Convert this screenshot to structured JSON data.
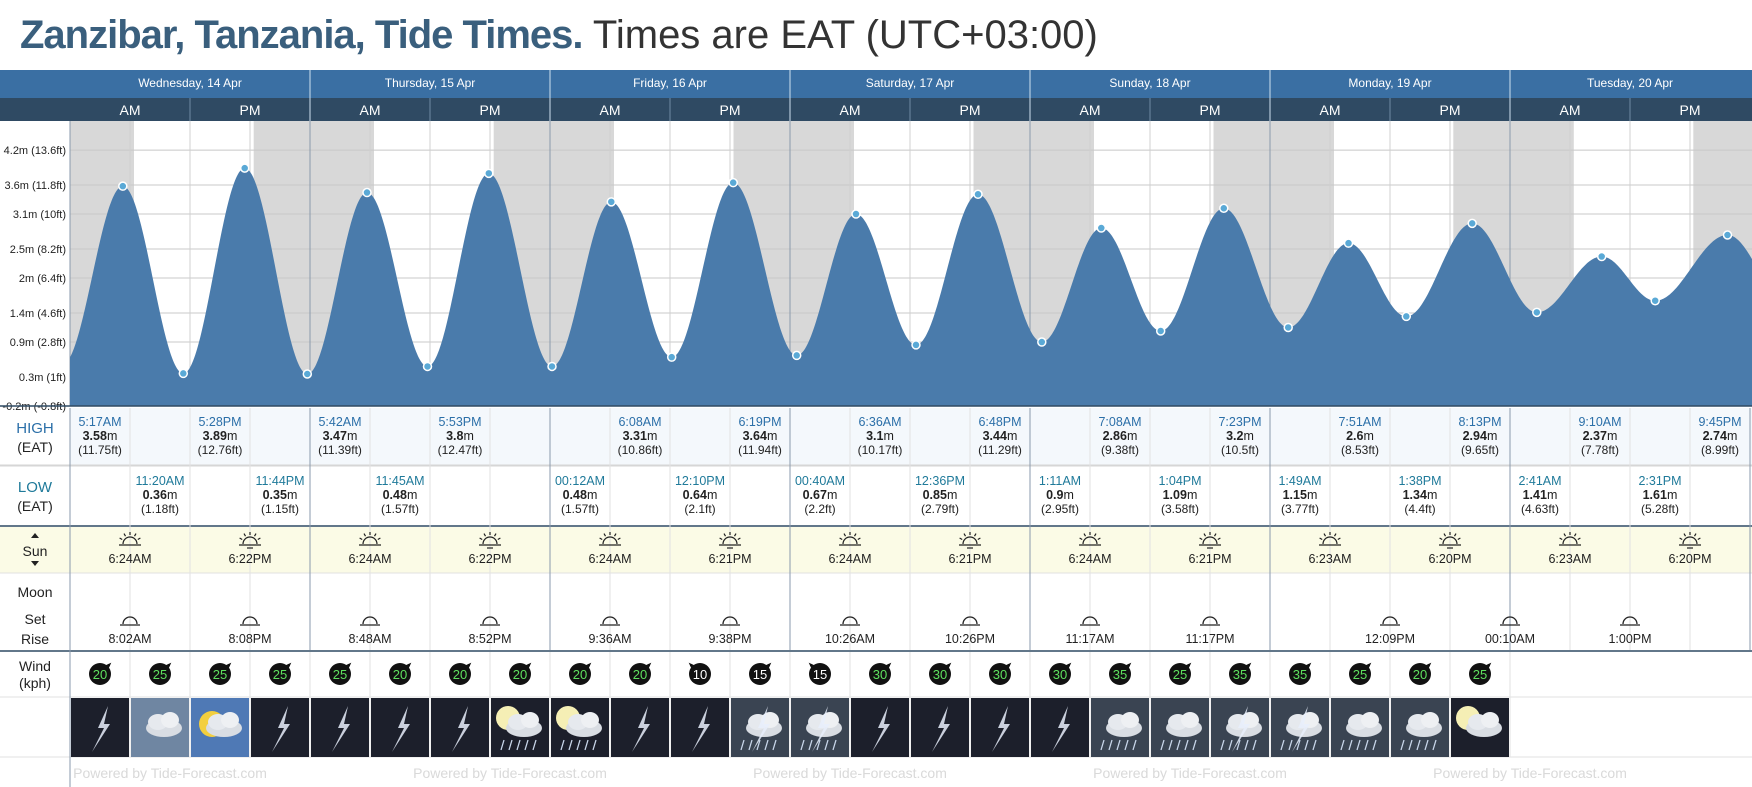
{
  "title": {
    "place": "Zanzibar, Tanzania, Tide Times.",
    "tz": "Times are EAT (UTC+03:00)"
  },
  "colors": {
    "header": "#3a6fa3",
    "subheader": "#2f4a63",
    "tide": "#4a7bab",
    "night": "#d8d8d8",
    "dot": "#5aa9d6",
    "sunrow": "#fbfbe6",
    "highlabel": "#2b6fa8",
    "lowlabel": "#1f7a9a"
  },
  "days": [
    "Wednesday, 14 Apr",
    "Thursday, 15 Apr",
    "Friday, 16 Apr",
    "Saturday, 17 Apr",
    "Sunday, 18 Apr",
    "Monday, 19 Apr",
    "Tuesday, 20 Apr"
  ],
  "halves": [
    "AM",
    "PM"
  ],
  "labels": {
    "high": "HIGH",
    "low": "LOW",
    "eat": "(EAT)",
    "sun": "Sun",
    "moon": "Moon",
    "set": "Set",
    "rise": "Rise",
    "wind": "Wind",
    "kph": "(kph)",
    "watermark": "Powered by Tide-Forecast.com"
  },
  "chart_data": {
    "type": "area",
    "x_unit": "date/time (EAT)",
    "y_ticks": [
      "4.2m (13.6ft)",
      "3.6m (11.8ft)",
      "3.1m (10ft)",
      "2.5m (8.2ft)",
      "2m (6.4ft)",
      "1.4m (4.6ft)",
      "0.9m (2.8ft)",
      "0.3m (1ft)",
      "-0.2m (-0.8ft)"
    ],
    "ylim": [
      -0.2,
      4.7
    ],
    "series": [
      {
        "day": 0,
        "time": "5:17AM",
        "hours": 5.28,
        "m": 3.58,
        "type": "high"
      },
      {
        "day": 0,
        "time": "11:20AM",
        "hours": 11.33,
        "m": 0.36,
        "type": "low"
      },
      {
        "day": 0,
        "time": "5:28PM",
        "hours": 17.47,
        "m": 3.89,
        "type": "high"
      },
      {
        "day": 0,
        "time": "11:44PM",
        "hours": 23.73,
        "m": 0.35,
        "type": "low"
      },
      {
        "day": 1,
        "time": "5:42AM",
        "hours": 5.7,
        "m": 3.47,
        "type": "high"
      },
      {
        "day": 1,
        "time": "11:45AM",
        "hours": 11.75,
        "m": 0.48,
        "type": "low"
      },
      {
        "day": 1,
        "time": "5:53PM",
        "hours": 17.88,
        "m": 3.8,
        "type": "high"
      },
      {
        "day": 2,
        "time": "00:12AM",
        "hours": 0.2,
        "m": 0.48,
        "type": "low"
      },
      {
        "day": 2,
        "time": "6:08AM",
        "hours": 6.13,
        "m": 3.31,
        "type": "high"
      },
      {
        "day": 2,
        "time": "12:10PM",
        "hours": 12.17,
        "m": 0.64,
        "type": "low"
      },
      {
        "day": 2,
        "time": "6:19PM",
        "hours": 18.32,
        "m": 3.64,
        "type": "high"
      },
      {
        "day": 3,
        "time": "00:40AM",
        "hours": 0.67,
        "m": 0.67,
        "type": "low"
      },
      {
        "day": 3,
        "time": "6:36AM",
        "hours": 6.6,
        "m": 3.1,
        "type": "high"
      },
      {
        "day": 3,
        "time": "12:36PM",
        "hours": 12.6,
        "m": 0.85,
        "type": "low"
      },
      {
        "day": 3,
        "time": "6:48PM",
        "hours": 18.8,
        "m": 3.44,
        "type": "high"
      },
      {
        "day": 4,
        "time": "1:11AM",
        "hours": 1.18,
        "m": 0.9,
        "type": "low"
      },
      {
        "day": 4,
        "time": "7:08AM",
        "hours": 7.13,
        "m": 2.86,
        "type": "high"
      },
      {
        "day": 4,
        "time": "1:04PM",
        "hours": 13.07,
        "m": 1.09,
        "type": "low"
      },
      {
        "day": 4,
        "time": "7:23PM",
        "hours": 19.38,
        "m": 3.2,
        "type": "high"
      },
      {
        "day": 5,
        "time": "1:49AM",
        "hours": 1.82,
        "m": 1.15,
        "type": "low"
      },
      {
        "day": 5,
        "time": "7:51AM",
        "hours": 7.85,
        "m": 2.6,
        "type": "high"
      },
      {
        "day": 5,
        "time": "1:38PM",
        "hours": 13.63,
        "m": 1.34,
        "type": "low"
      },
      {
        "day": 5,
        "time": "8:13PM",
        "hours": 20.22,
        "m": 2.94,
        "type": "high"
      },
      {
        "day": 6,
        "time": "2:41AM",
        "hours": 2.68,
        "m": 1.41,
        "type": "low"
      },
      {
        "day": 6,
        "time": "9:10AM",
        "hours": 9.17,
        "m": 2.37,
        "type": "high"
      },
      {
        "day": 6,
        "time": "2:31PM",
        "hours": 14.52,
        "m": 1.61,
        "type": "low"
      },
      {
        "day": 6,
        "time": "9:45PM",
        "hours": 21.75,
        "m": 2.74,
        "type": "high"
      }
    ]
  },
  "tides": [
    {
      "slot": 0,
      "row": "high",
      "time": "5:17AM",
      "m": "3.58",
      "ft": "(11.75ft)"
    },
    {
      "slot": 1,
      "row": "low",
      "time": "11:20AM",
      "m": "0.36",
      "ft": "(1.18ft)"
    },
    {
      "slot": 2,
      "row": "high",
      "time": "5:28PM",
      "m": "3.89",
      "ft": "(12.76ft)"
    },
    {
      "slot": 3,
      "row": "low",
      "time": "11:44PM",
      "m": "0.35",
      "ft": "(1.15ft)"
    },
    {
      "slot": 4,
      "row": "high",
      "time": "5:42AM",
      "m": "3.47",
      "ft": "(11.39ft)"
    },
    {
      "slot": 5,
      "row": "low",
      "time": "11:45AM",
      "m": "0.48",
      "ft": "(1.57ft)"
    },
    {
      "slot": 6,
      "row": "high",
      "time": "5:53PM",
      "m": "3.8",
      "ft": "(12.47ft)"
    },
    {
      "slot": 8,
      "row": "low",
      "time": "00:12AM",
      "m": "0.48",
      "ft": "(1.57ft)"
    },
    {
      "slot": 9,
      "row": "high",
      "time": "6:08AM",
      "m": "3.31",
      "ft": "(10.86ft)"
    },
    {
      "slot": 10,
      "row": "low",
      "time": "12:10PM",
      "m": "0.64",
      "ft": "(2.1ft)"
    },
    {
      "slot": 11,
      "row": "high",
      "time": "6:19PM",
      "m": "3.64",
      "ft": "(11.94ft)"
    },
    {
      "slot": 12,
      "row": "low",
      "time": "00:40AM",
      "m": "0.67",
      "ft": "(2.2ft)"
    },
    {
      "slot": 13,
      "row": "high",
      "time": "6:36AM",
      "m": "3.1",
      "ft": "(10.17ft)"
    },
    {
      "slot": 14,
      "row": "low",
      "time": "12:36PM",
      "m": "0.85",
      "ft": "(2.79ft)"
    },
    {
      "slot": 15,
      "row": "high",
      "time": "6:48PM",
      "m": "3.44",
      "ft": "(11.29ft)"
    },
    {
      "slot": 16,
      "row": "low",
      "time": "1:11AM",
      "m": "0.9",
      "ft": "(2.95ft)"
    },
    {
      "slot": 17,
      "row": "high",
      "time": "7:08AM",
      "m": "2.86",
      "ft": "(9.38ft)"
    },
    {
      "slot": 18,
      "row": "low",
      "time": "1:04PM",
      "m": "1.09",
      "ft": "(3.58ft)"
    },
    {
      "slot": 19,
      "row": "high",
      "time": "7:23PM",
      "m": "3.2",
      "ft": "(10.5ft)"
    },
    {
      "slot": 20,
      "row": "low",
      "time": "1:49AM",
      "m": "1.15",
      "ft": "(3.77ft)"
    },
    {
      "slot": 21,
      "row": "high",
      "time": "7:51AM",
      "m": "2.6",
      "ft": "(8.53ft)"
    },
    {
      "slot": 22,
      "row": "low",
      "time": "1:38PM",
      "m": "1.34",
      "ft": "(4.4ft)"
    },
    {
      "slot": 23,
      "row": "high",
      "time": "8:13PM",
      "m": "2.94",
      "ft": "(9.65ft)"
    },
    {
      "slot": 24,
      "row": "low",
      "time": "2:41AM",
      "m": "1.41",
      "ft": "(4.63ft)"
    },
    {
      "slot": 25,
      "row": "high",
      "time": "9:10AM",
      "m": "2.37",
      "ft": "(7.78ft)"
    },
    {
      "slot": 26,
      "row": "low",
      "time": "2:31PM",
      "m": "1.61",
      "ft": "(5.28ft)"
    },
    {
      "slot": 27,
      "row": "high",
      "time": "9:45PM",
      "m": "2.74",
      "ft": "(8.99ft)"
    }
  ],
  "sun": [
    {
      "slot": 1,
      "kind": "rise",
      "time": "6:24AM"
    },
    {
      "slot": 3,
      "kind": "set",
      "time": "6:22PM"
    },
    {
      "slot": 5,
      "kind": "rise",
      "time": "6:24AM"
    },
    {
      "slot": 7,
      "kind": "set",
      "time": "6:22PM"
    },
    {
      "slot": 9,
      "kind": "rise",
      "time": "6:24AM"
    },
    {
      "slot": 11,
      "kind": "set",
      "time": "6:21PM"
    },
    {
      "slot": 13,
      "kind": "rise",
      "time": "6:24AM"
    },
    {
      "slot": 15,
      "kind": "set",
      "time": "6:21PM"
    },
    {
      "slot": 17,
      "kind": "rise",
      "time": "6:24AM"
    },
    {
      "slot": 19,
      "kind": "set",
      "time": "6:21PM"
    },
    {
      "slot": 21,
      "kind": "rise",
      "time": "6:23AM"
    },
    {
      "slot": 23,
      "kind": "set",
      "time": "6:20PM"
    },
    {
      "slot": 25,
      "kind": "rise",
      "time": "6:23AM"
    },
    {
      "slot": 27,
      "kind": "set",
      "time": "6:20PM"
    }
  ],
  "moon": [
    {
      "slot": 1,
      "kind": "rise",
      "time": "8:02AM"
    },
    {
      "slot": 3,
      "kind": "set",
      "time": "8:08PM"
    },
    {
      "slot": 5,
      "kind": "rise",
      "time": "8:48AM"
    },
    {
      "slot": 7,
      "kind": "set",
      "time": "8:52PM"
    },
    {
      "slot": 9,
      "kind": "rise",
      "time": "9:36AM"
    },
    {
      "slot": 11,
      "kind": "set",
      "time": "9:38PM"
    },
    {
      "slot": 13,
      "kind": "rise",
      "time": "10:26AM"
    },
    {
      "slot": 15,
      "kind": "set",
      "time": "10:26PM"
    },
    {
      "slot": 17,
      "kind": "rise",
      "time": "11:17AM"
    },
    {
      "slot": 19,
      "kind": "set",
      "time": "11:17PM"
    },
    {
      "slot": 22,
      "kind": "rise",
      "time": "12:09PM"
    },
    {
      "slot": 24,
      "kind": "set",
      "time": "00:10AM"
    },
    {
      "slot": 26,
      "kind": "rise",
      "time": "1:00PM"
    }
  ],
  "wind": [
    {
      "v": "20",
      "dir": "ne"
    },
    {
      "v": "25",
      "dir": "ne"
    },
    {
      "v": "25",
      "dir": "ne"
    },
    {
      "v": "25",
      "dir": "ne"
    },
    {
      "v": "25",
      "dir": "ne"
    },
    {
      "v": "20",
      "dir": "ne"
    },
    {
      "v": "20",
      "dir": "ne"
    },
    {
      "v": "20",
      "dir": "ne"
    },
    {
      "v": "20",
      "dir": "ne"
    },
    {
      "v": "20",
      "dir": "ne"
    },
    {
      "v": "10",
      "dir": "nw"
    },
    {
      "v": "15",
      "dir": "ne"
    },
    {
      "v": "15",
      "dir": "nw"
    },
    {
      "v": "30",
      "dir": "ne"
    },
    {
      "v": "30",
      "dir": "ne"
    },
    {
      "v": "30",
      "dir": "ne"
    },
    {
      "v": "30",
      "dir": "ne"
    },
    {
      "v": "35",
      "dir": "ne"
    },
    {
      "v": "25",
      "dir": "ne"
    },
    {
      "v": "35",
      "dir": "ne"
    },
    {
      "v": "35",
      "dir": "ne"
    },
    {
      "v": "25",
      "dir": "ne"
    },
    {
      "v": "20",
      "dir": "ne"
    },
    {
      "v": "25",
      "dir": "ne"
    }
  ],
  "weather": [
    "thunderstorm",
    "cloudy",
    "sun-cloud",
    "thunderstorm",
    "thunderstorm",
    "thunderstorm",
    "thunderstorm",
    "night-moon-rain",
    "night-moon-rain",
    "thunderstorm",
    "thunderstorm",
    "rain-cloud",
    "rain-cloud",
    "thunderstorm",
    "thunderstorm",
    "thunderstorm",
    "thunderstorm",
    "heavy-rain",
    "heavy-rain",
    "rain-cloud",
    "rain-cloud",
    "heavy-rain",
    "heavy-rain",
    "night-moon-cloud"
  ]
}
